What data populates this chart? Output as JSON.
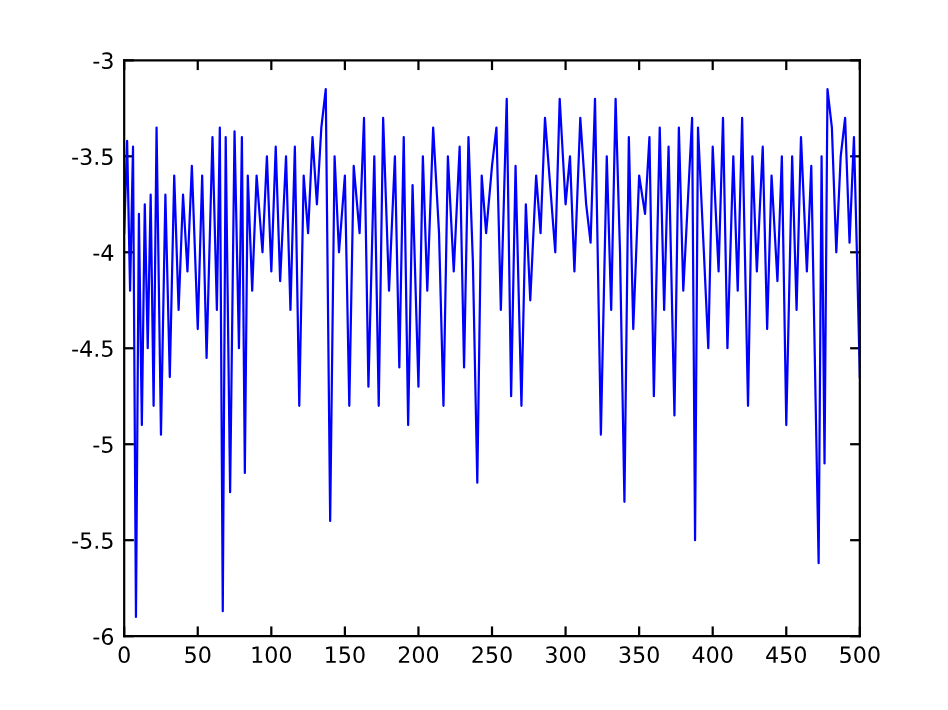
{
  "chart_data": {
    "type": "line",
    "xlim": [
      0,
      500
    ],
    "ylim": [
      -6,
      -3
    ],
    "xticks": [
      0,
      50,
      100,
      150,
      200,
      250,
      300,
      350,
      400,
      450,
      500
    ],
    "yticks": [
      -6,
      -5.5,
      -5,
      -4.5,
      -4,
      -3.5,
      -3
    ],
    "grid": false,
    "marker": "none",
    "line_style": "solid",
    "series": [
      {
        "color": "#0000ff",
        "x": [
          0,
          2,
          4,
          6,
          8,
          10,
          12,
          14,
          16,
          18,
          20,
          22,
          25,
          28,
          31,
          34,
          37,
          40,
          43,
          46,
          50,
          53,
          56,
          60,
          63,
          65,
          67,
          69,
          72,
          75,
          78,
          80,
          82,
          84,
          87,
          90,
          94,
          97,
          100,
          103,
          106,
          110,
          113,
          116,
          119,
          122,
          125,
          128,
          131,
          134,
          137,
          140,
          143,
          146,
          150,
          153,
          156,
          160,
          163,
          166,
          170,
          173,
          176,
          180,
          184,
          187,
          190,
          193,
          196,
          200,
          203,
          206,
          210,
          214,
          217,
          220,
          224,
          228,
          231,
          234,
          237,
          240,
          243,
          246,
          250,
          253,
          256,
          260,
          263,
          266,
          270,
          273,
          276,
          280,
          283,
          286,
          290,
          293,
          296,
          300,
          303,
          306,
          310,
          314,
          317,
          320,
          324,
          328,
          331,
          334,
          337,
          340,
          343,
          346,
          350,
          354,
          357,
          360,
          364,
          367,
          370,
          374,
          377,
          380,
          384,
          386,
          388,
          390,
          394,
          397,
          400,
          404,
          407,
          410,
          414,
          417,
          420,
          424,
          427,
          430,
          434,
          437,
          440,
          444,
          447,
          450,
          454,
          457,
          460,
          464,
          467,
          470,
          472,
          474,
          476,
          478,
          481,
          484,
          487,
          490,
          493,
          496,
          498,
          500
        ],
        "values": [
          -3.9,
          -3.42,
          -4.2,
          -3.45,
          -5.9,
          -3.8,
          -4.9,
          -3.75,
          -4.5,
          -3.7,
          -4.8,
          -3.35,
          -4.95,
          -3.7,
          -4.65,
          -3.6,
          -4.3,
          -3.7,
          -4.1,
          -3.55,
          -4.4,
          -3.6,
          -4.55,
          -3.4,
          -4.3,
          -3.35,
          -5.87,
          -3.4,
          -5.25,
          -3.37,
          -4.5,
          -3.4,
          -5.15,
          -3.6,
          -4.2,
          -3.6,
          -4.0,
          -3.5,
          -4.1,
          -3.45,
          -4.15,
          -3.5,
          -4.3,
          -3.45,
          -4.8,
          -3.6,
          -3.9,
          -3.4,
          -3.75,
          -3.35,
          -3.15,
          -5.4,
          -3.5,
          -4.0,
          -3.6,
          -4.8,
          -3.55,
          -3.9,
          -3.3,
          -4.7,
          -3.5,
          -4.8,
          -3.3,
          -4.2,
          -3.5,
          -4.6,
          -3.4,
          -4.9,
          -3.65,
          -4.7,
          -3.5,
          -4.2,
          -3.35,
          -3.9,
          -4.8,
          -3.5,
          -4.1,
          -3.45,
          -4.6,
          -3.4,
          -4.05,
          -5.2,
          -3.6,
          -3.9,
          -3.55,
          -3.35,
          -4.3,
          -3.2,
          -4.75,
          -3.55,
          -4.8,
          -3.75,
          -4.25,
          -3.6,
          -3.9,
          -3.3,
          -3.7,
          -4.0,
          -3.2,
          -3.75,
          -3.5,
          -4.1,
          -3.3,
          -3.75,
          -3.95,
          -3.2,
          -4.95,
          -3.5,
          -4.3,
          -3.2,
          -4.0,
          -5.3,
          -3.4,
          -4.4,
          -3.6,
          -3.8,
          -3.4,
          -4.75,
          -3.35,
          -4.3,
          -3.45,
          -4.85,
          -3.35,
          -4.2,
          -3.6,
          -3.3,
          -5.5,
          -3.35,
          -4.0,
          -4.5,
          -3.45,
          -4.1,
          -3.3,
          -4.5,
          -3.5,
          -4.2,
          -3.3,
          -4.8,
          -3.5,
          -4.1,
          -3.45,
          -4.4,
          -3.6,
          -4.15,
          -3.5,
          -4.9,
          -3.5,
          -4.3,
          -3.4,
          -4.1,
          -3.55,
          -4.8,
          -5.62,
          -3.5,
          -5.1,
          -3.15,
          -3.35,
          -4.0,
          -3.5,
          -3.3,
          -3.95,
          -3.4,
          -4.0,
          -4.65
        ]
      }
    ]
  }
}
